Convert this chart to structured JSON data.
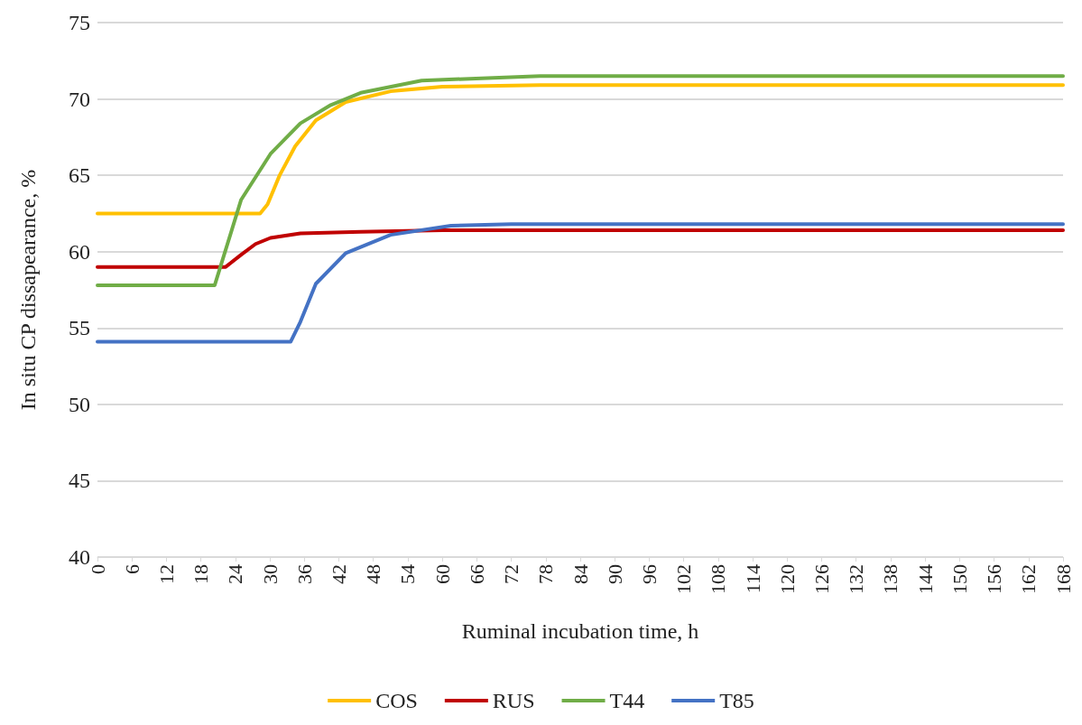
{
  "chart_data": {
    "type": "line",
    "xlabel": "Ruminal incubation time, h",
    "ylabel": "In situ CP dissapearance, %",
    "xlim": [
      0,
      168
    ],
    "xticks": [
      0,
      6,
      12,
      18,
      24,
      30,
      36,
      42,
      48,
      54,
      60,
      66,
      72,
      78,
      84,
      90,
      96,
      102,
      108,
      114,
      120,
      126,
      132,
      138,
      144,
      150,
      156,
      162,
      168
    ],
    "ylim": [
      40,
      75
    ],
    "yticks": [
      40,
      45,
      50,
      55,
      60,
      65,
      70,
      75
    ],
    "grid": "y",
    "legend": "bottom",
    "marker": "none",
    "line_style": "solid",
    "series": [
      {
        "name": "COS",
        "color": "#ffc000",
        "x": [
          0,
          28.3,
          29.6,
          31.7,
          34.4,
          38,
          43.2,
          51,
          60,
          77,
          168
        ],
        "values": [
          62.5,
          62.5,
          63.1,
          65,
          66.9,
          68.6,
          69.8,
          70.5,
          70.8,
          70.9,
          70.9
        ]
      },
      {
        "name": "RUS",
        "color": "#c00000",
        "x": [
          0,
          22.3,
          25,
          27.5,
          30.1,
          35.3,
          45.8,
          60,
          168
        ],
        "values": [
          59,
          59,
          59.8,
          60.5,
          60.9,
          61.2,
          61.3,
          61.4,
          61.4
        ]
      },
      {
        "name": "T44",
        "color": "#70ad47",
        "x": [
          0,
          20.4,
          25,
          30.1,
          35.3,
          40.6,
          45.8,
          56.4,
          77,
          168
        ],
        "values": [
          57.8,
          57.8,
          63.4,
          66.4,
          68.4,
          69.6,
          70.4,
          71.2,
          71.5,
          71.5
        ]
      },
      {
        "name": "T85",
        "color": "#4472c4",
        "x": [
          0,
          33.6,
          35.3,
          38,
          43.2,
          51,
          61.5,
          72,
          168
        ],
        "values": [
          54.1,
          54.1,
          55.4,
          57.9,
          59.9,
          61.1,
          61.7,
          61.8,
          61.8
        ]
      }
    ]
  }
}
